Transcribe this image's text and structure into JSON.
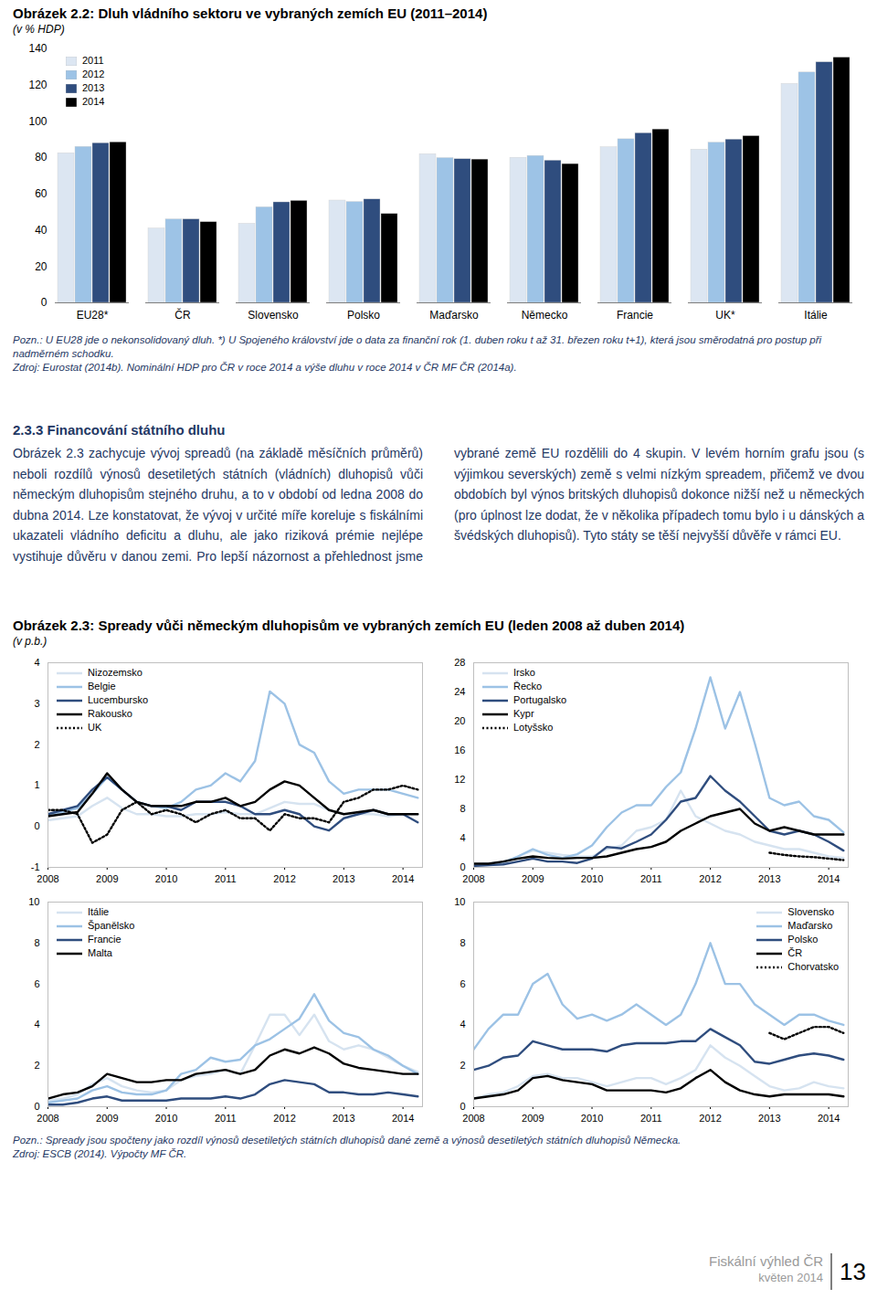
{
  "chart_data": [
    {
      "type": "bar",
      "title": "Obrázek 2.2: Dluh vládního sektoru ve vybraných zemích EU (2011–2014)",
      "subtitle": "(v % HDP)",
      "categories": [
        "EU28*",
        "ČR",
        "Slovensko",
        "Polsko",
        "Maďarsko",
        "Německo",
        "Francie",
        "UK*",
        "Itálie"
      ],
      "series": [
        {
          "name": "2011",
          "color": "#dce6f2",
          "values": [
            82.5,
            41,
            43.6,
            56.4,
            82,
            80,
            85.8,
            84.5,
            120.7
          ]
        },
        {
          "name": "2012",
          "color": "#9dc3e6",
          "values": [
            86,
            46,
            52.7,
            55.6,
            79.8,
            81,
            90.2,
            88.3,
            127
          ]
        },
        {
          "name": "2013",
          "color": "#2f4d7e",
          "values": [
            88,
            46,
            55.4,
            57,
            79.2,
            78.4,
            93.5,
            90,
            132.6
          ]
        },
        {
          "name": "2014",
          "color": "#000000",
          "values": [
            88.5,
            44.5,
            56.2,
            49,
            79,
            76.5,
            95.6,
            91.9,
            135.2
          ]
        }
      ],
      "ylim": [
        0,
        140
      ],
      "yticks": [
        0,
        20,
        40,
        60,
        80,
        100,
        120,
        140
      ],
      "legend": "top-left"
    },
    {
      "type": "line",
      "x": [
        2008,
        2008.25,
        2008.5,
        2008.75,
        2009,
        2009.25,
        2009.5,
        2009.75,
        2010,
        2010.25,
        2010.5,
        2010.75,
        2011,
        2011.25,
        2011.5,
        2011.75,
        2012,
        2012.25,
        2012.5,
        2012.75,
        2013,
        2013.25,
        2013.5,
        2013.75,
        2014,
        2014.25
      ],
      "xlim": [
        2008,
        2014.33
      ],
      "xticks": [
        2008,
        2009,
        2010,
        2011,
        2012,
        2013,
        2014
      ],
      "ylim": [
        -1,
        4
      ],
      "yticks": [
        -1,
        0,
        1,
        2,
        3,
        4
      ],
      "legend": "top-left",
      "series": [
        {
          "name": "Nizozemsko",
          "color": "#d6e3f0",
          "line_style": "solid",
          "values": [
            0.15,
            0.2,
            0.25,
            0.5,
            0.7,
            0.45,
            0.3,
            0.3,
            0.25,
            0.25,
            0.3,
            0.3,
            0.35,
            0.3,
            0.3,
            0.45,
            0.6,
            0.55,
            0.55,
            0.4,
            0.3,
            0.3,
            0.3,
            0.25,
            0.3,
            0.3
          ]
        },
        {
          "name": "Belgie",
          "color": "#9cc2e5",
          "line_style": "solid",
          "values": [
            0.25,
            0.35,
            0.45,
            0.8,
            1.2,
            0.9,
            0.6,
            0.5,
            0.45,
            0.6,
            0.9,
            1.0,
            1.3,
            1.1,
            1.6,
            3.3,
            3.0,
            2.0,
            1.8,
            1.1,
            0.8,
            0.9,
            0.9,
            0.9,
            0.8,
            0.7
          ]
        },
        {
          "name": "Lucembursko",
          "color": "#2f4d7e",
          "line_style": "solid",
          "values": [
            0.3,
            0.4,
            0.5,
            0.9,
            1.2,
            0.9,
            0.6,
            0.5,
            0.5,
            0.4,
            0.6,
            0.6,
            0.6,
            0.5,
            0.3,
            0.3,
            0.4,
            0.3,
            0.0,
            -0.1,
            0.2,
            0.3,
            0.4,
            0.3,
            0.3,
            0.1
          ]
        },
        {
          "name": "Rakousko",
          "color": "#000000",
          "line_style": "solid",
          "values": [
            0.25,
            0.3,
            0.35,
            0.8,
            1.3,
            0.9,
            0.6,
            0.5,
            0.5,
            0.5,
            0.6,
            0.6,
            0.7,
            0.5,
            0.6,
            0.9,
            1.1,
            1.0,
            0.7,
            0.4,
            0.3,
            0.35,
            0.4,
            0.3,
            0.3,
            0.3
          ]
        },
        {
          "name": "UK",
          "color": "#000000",
          "line_style": "dotted",
          "values": [
            0.4,
            0.4,
            0.3,
            -0.4,
            -0.2,
            0.4,
            0.6,
            0.3,
            0.4,
            0.3,
            0.1,
            0.3,
            0.4,
            0.2,
            0.2,
            -0.1,
            0.3,
            0.2,
            0.2,
            0.1,
            0.6,
            0.7,
            0.9,
            0.9,
            1.0,
            0.9
          ]
        }
      ]
    },
    {
      "type": "line",
      "x": [
        2008,
        2008.25,
        2008.5,
        2008.75,
        2009,
        2009.25,
        2009.5,
        2009.75,
        2010,
        2010.25,
        2010.5,
        2010.75,
        2011,
        2011.25,
        2011.5,
        2011.75,
        2012,
        2012.25,
        2012.5,
        2012.75,
        2013,
        2013.25,
        2013.5,
        2013.75,
        2014,
        2014.25
      ],
      "xlim": [
        2008,
        2014.33
      ],
      "xticks": [
        2008,
        2009,
        2010,
        2011,
        2012,
        2013,
        2014
      ],
      "ylim": [
        0,
        28
      ],
      "yticks": [
        0,
        4,
        8,
        12,
        16,
        20,
        24,
        28
      ],
      "legend": "top-left",
      "series": [
        {
          "name": "Irsko",
          "color": "#d6e3f0",
          "line_style": "solid",
          "values": [
            0.2,
            0.3,
            0.5,
            1.5,
            2.3,
            2.0,
            1.7,
            1.5,
            1.5,
            2.5,
            3.0,
            5.0,
            5.5,
            6.5,
            10.5,
            7.0,
            6.0,
            5.0,
            4.5,
            3.5,
            3.0,
            2.5,
            2.5,
            2.0,
            1.5,
            1.3
          ]
        },
        {
          "name": "Řecko",
          "color": "#9cc2e5",
          "line_style": "solid",
          "values": [
            0.4,
            0.5,
            0.7,
            1.5,
            2.5,
            1.7,
            1.3,
            1.8,
            3.0,
            5.5,
            7.5,
            8.5,
            8.5,
            11,
            13,
            19,
            26,
            19,
            24,
            17,
            9.5,
            8.5,
            9.0,
            7.0,
            6.5,
            4.8
          ]
        },
        {
          "name": "Portugalsko",
          "color": "#2f4d7e",
          "line_style": "solid",
          "values": [
            0.2,
            0.3,
            0.4,
            0.8,
            1.2,
            0.8,
            0.8,
            0.6,
            1.2,
            2.8,
            2.6,
            3.5,
            4.5,
            6.5,
            9.0,
            9.5,
            12.5,
            10.5,
            9.0,
            7.0,
            5.0,
            4.5,
            5.0,
            4.5,
            3.5,
            2.3
          ]
        },
        {
          "name": "Kypr",
          "color": "#000000",
          "line_style": "solid",
          "values": [
            0.5,
            0.5,
            0.8,
            1.2,
            1.5,
            1.3,
            1.2,
            1.3,
            1.3,
            1.5,
            2.0,
            2.5,
            2.8,
            3.5,
            5.0,
            6.0,
            7.0,
            7.5,
            8.0,
            6.0,
            5.0,
            5.5,
            5.0,
            4.5,
            4.5,
            4.5
          ]
        },
        {
          "name": "Lotyšsko",
          "color": "#000000",
          "line_style": "dotted",
          "values": [
            null,
            null,
            null,
            null,
            null,
            null,
            null,
            null,
            null,
            null,
            null,
            null,
            null,
            null,
            null,
            null,
            null,
            null,
            null,
            null,
            2.0,
            1.7,
            1.5,
            1.4,
            1.2,
            1.0
          ]
        }
      ]
    },
    {
      "type": "line",
      "x": [
        2008,
        2008.25,
        2008.5,
        2008.75,
        2009,
        2009.25,
        2009.5,
        2009.75,
        2010,
        2010.25,
        2010.5,
        2010.75,
        2011,
        2011.25,
        2011.5,
        2011.75,
        2012,
        2012.25,
        2012.5,
        2012.75,
        2013,
        2013.25,
        2013.5,
        2013.75,
        2014,
        2014.25
      ],
      "xlim": [
        2008,
        2014.33
      ],
      "xticks": [
        2008,
        2009,
        2010,
        2011,
        2012,
        2013,
        2014
      ],
      "ylim": [
        0,
        10
      ],
      "yticks": [
        0,
        2,
        4,
        6,
        8,
        10
      ],
      "legend": "top-left",
      "series": [
        {
          "name": "Itálie",
          "color": "#d6e3f0",
          "line_style": "solid",
          "values": [
            0.3,
            0.4,
            0.6,
            1.1,
            1.4,
            1.0,
            0.8,
            0.7,
            0.8,
            1.3,
            1.5,
            1.6,
            1.8,
            1.6,
            3.0,
            4.5,
            4.5,
            3.5,
            4.5,
            3.2,
            2.8,
            3.0,
            2.8,
            2.4,
            2.0,
            1.7
          ]
        },
        {
          "name": "Španělsko",
          "color": "#9cc2e5",
          "line_style": "solid",
          "values": [
            0.2,
            0.3,
            0.4,
            0.8,
            1.0,
            0.7,
            0.6,
            0.6,
            0.8,
            1.6,
            1.8,
            2.4,
            2.2,
            2.3,
            3.0,
            3.3,
            3.8,
            4.3,
            5.5,
            4.2,
            3.6,
            3.4,
            2.8,
            2.5,
            2.0,
            1.6
          ]
        },
        {
          "name": "Francie",
          "color": "#2f4d7e",
          "line_style": "solid",
          "values": [
            0.1,
            0.1,
            0.2,
            0.4,
            0.5,
            0.3,
            0.3,
            0.3,
            0.3,
            0.4,
            0.4,
            0.4,
            0.5,
            0.4,
            0.6,
            1.1,
            1.3,
            1.2,
            1.1,
            0.7,
            0.7,
            0.6,
            0.6,
            0.7,
            0.6,
            0.5
          ]
        },
        {
          "name": "Malta",
          "color": "#000000",
          "line_style": "solid",
          "values": [
            0.4,
            0.6,
            0.7,
            1.0,
            1.6,
            1.4,
            1.2,
            1.2,
            1.3,
            1.3,
            1.6,
            1.7,
            1.8,
            1.6,
            1.8,
            2.5,
            2.8,
            2.6,
            2.9,
            2.6,
            2.1,
            1.9,
            1.8,
            1.7,
            1.6,
            1.6
          ]
        }
      ]
    },
    {
      "type": "line",
      "x": [
        2008,
        2008.25,
        2008.5,
        2008.75,
        2009,
        2009.25,
        2009.5,
        2009.75,
        2010,
        2010.25,
        2010.5,
        2010.75,
        2011,
        2011.25,
        2011.5,
        2011.75,
        2012,
        2012.25,
        2012.5,
        2012.75,
        2013,
        2013.25,
        2013.5,
        2013.75,
        2014,
        2014.25
      ],
      "xlim": [
        2008,
        2014.33
      ],
      "xticks": [
        2008,
        2009,
        2010,
        2011,
        2012,
        2013,
        2014
      ],
      "ylim": [
        0,
        10
      ],
      "yticks": [
        0,
        2,
        4,
        6,
        8,
        10
      ],
      "legend": "top-right",
      "series": [
        {
          "name": "Slovensko",
          "color": "#d6e3f0",
          "line_style": "solid",
          "values": [
            0.4,
            0.6,
            0.7,
            1.0,
            1.5,
            1.6,
            1.4,
            1.4,
            1.2,
            1.0,
            1.2,
            1.4,
            1.4,
            1.1,
            1.4,
            1.8,
            3.0,
            2.4,
            2.0,
            1.5,
            1.0,
            0.8,
            0.9,
            1.2,
            1.0,
            0.9
          ]
        },
        {
          "name": "Maďarsko",
          "color": "#9cc2e5",
          "line_style": "solid",
          "values": [
            2.8,
            3.8,
            4.5,
            4.5,
            6.0,
            6.5,
            5.0,
            4.3,
            4.5,
            4.2,
            4.5,
            5.0,
            4.5,
            4.0,
            4.5,
            6.0,
            8.0,
            6.0,
            6.0,
            5.0,
            4.5,
            4.0,
            4.5,
            4.5,
            4.2,
            4.0
          ]
        },
        {
          "name": "Polsko",
          "color": "#2f4d7e",
          "line_style": "solid",
          "values": [
            1.8,
            2.0,
            2.4,
            2.5,
            3.2,
            3.0,
            2.8,
            2.8,
            2.8,
            2.7,
            3.0,
            3.1,
            3.1,
            3.1,
            3.2,
            3.2,
            3.8,
            3.4,
            3.0,
            2.2,
            2.1,
            2.3,
            2.5,
            2.6,
            2.5,
            2.3
          ]
        },
        {
          "name": "ČR",
          "color": "#000000",
          "line_style": "solid",
          "values": [
            0.4,
            0.5,
            0.6,
            0.8,
            1.4,
            1.5,
            1.3,
            1.2,
            1.1,
            0.8,
            0.8,
            0.8,
            0.8,
            0.7,
            0.9,
            1.4,
            1.8,
            1.2,
            0.8,
            0.6,
            0.5,
            0.6,
            0.6,
            0.6,
            0.6,
            0.5
          ]
        },
        {
          "name": "Chorvatsko",
          "color": "#000000",
          "line_style": "dotted",
          "values": [
            null,
            null,
            null,
            null,
            null,
            null,
            null,
            null,
            null,
            null,
            null,
            null,
            null,
            null,
            null,
            null,
            null,
            null,
            null,
            null,
            3.6,
            3.3,
            3.6,
            3.9,
            3.9,
            3.6
          ]
        }
      ]
    }
  ],
  "figure_2_2": {
    "note": "Pozn.: U EU28 jde o nekonsolidovaný dluh. *) U Spojeného království jde o data za finanční rok (1. duben roku t až 31. březen roku t+1), která jsou směrodatná pro postup při nadměrném schodku.",
    "source": "Zdroj: Eurostat (2014b). Nominální HDP pro ČR v roce 2014 a výše dluhu v roce 2014 v ČR MF ČR (2014a)."
  },
  "section": {
    "heading": "2.3.3 Financování státního dluhu",
    "text": "Obrázek 2.3 zachycuje vývoj spreadů (na základě měsíčních průměrů) neboli rozdílů výnosů desetiletých státních (vládních) dluhopisů vůči německým dluhopisům stejného druhu, a to v období od ledna 2008 do dubna 2014. Lze konstatovat, že vývoj v určité míře koreluje s fiskálními ukazateli vládního deficitu a dluhu, ale jako riziková prémie nejlépe vystihuje důvěru v danou zemi. Pro lepší názornost a přehlednost jsme vybrané země EU rozdělili do 4 skupin. V levém horním grafu jsou (s výjimkou severských) země s velmi nízkým spreadem, přičemž ve dvou obdobích byl výnos britských dluhopisů dokonce nižší než u německých (pro úplnost lze dodat, že v několika případech tomu bylo i u dánských a švédských dluhopisů). Tyto státy se těší nejvyšší důvěře v rámci EU."
  },
  "figure_2_3": {
    "title": "Obrázek 2.3: Spready vůči německým dluhopisům ve vybraných zemích EU (leden 2008 až duben 2014)",
    "subtitle": "(v p.b.)",
    "note": "Pozn.: Spready jsou spočteny jako rozdíl výnosů desetiletých státních dluhopisů dané země a výnosů desetiletých státních dluhopisů Německa.",
    "source": "Zdroj: ESCB (2014). Výpočty MF ČR."
  },
  "footer": {
    "publication": "Fiskální výhled ČR",
    "date": "květen 2014",
    "page": "13"
  }
}
